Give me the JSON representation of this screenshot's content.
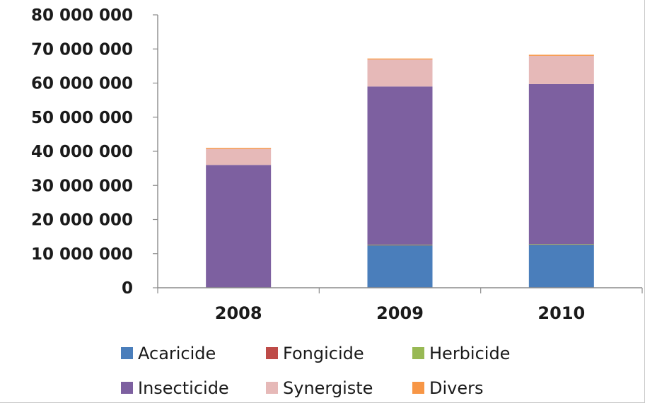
{
  "chart_data": {
    "type": "bar",
    "stacked": true,
    "title": "",
    "xlabel": "",
    "ylabel": "",
    "ylim": [
      0,
      80000000
    ],
    "ytick_labels": [
      "0",
      "10 000 000",
      "20 000 000",
      "30 000 000",
      "40 000 000",
      "50 000 000",
      "60 000 000",
      "70 000 000",
      "80 000 000"
    ],
    "yticks": [
      0,
      10000000,
      20000000,
      30000000,
      40000000,
      50000000,
      60000000,
      70000000,
      80000000
    ],
    "grid": false,
    "legend_position": "bottom",
    "categories": [
      "2008",
      "2009",
      "2010"
    ],
    "series": [
      {
        "name": "Acaricide",
        "color": "#4a7ebb",
        "values": [
          0,
          12500000,
          12700000
        ]
      },
      {
        "name": "Fongicide",
        "color": "#be4b48",
        "values": [
          0,
          50000,
          50000
        ]
      },
      {
        "name": "Herbicide",
        "color": "#98b954",
        "values": [
          0,
          50000,
          50000
        ]
      },
      {
        "name": "Insecticide",
        "color": "#7d60a0",
        "values": [
          36000000,
          46400000,
          46900000
        ]
      },
      {
        "name": "Synergiste",
        "color": "#e6b9b8",
        "values": [
          4700000,
          7900000,
          8300000
        ]
      },
      {
        "name": "Divers",
        "color": "#f79646",
        "values": [
          300000,
          300000,
          300000
        ]
      }
    ]
  }
}
